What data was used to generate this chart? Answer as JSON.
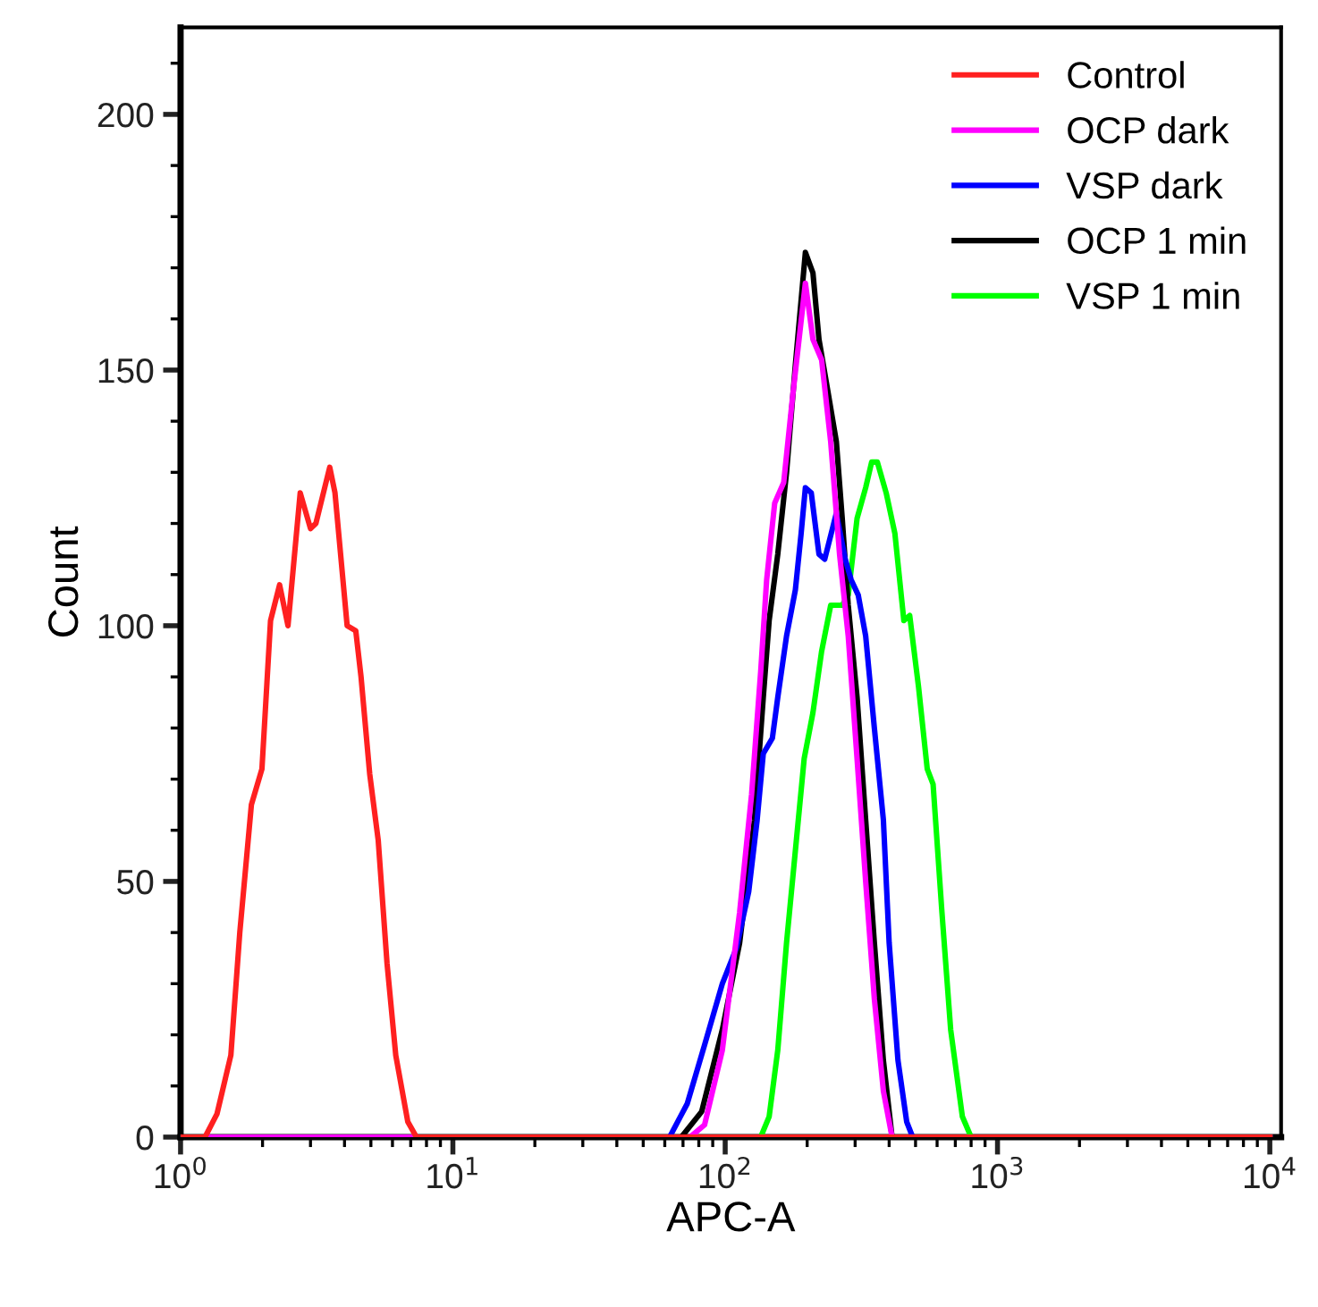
{
  "chart_data": {
    "type": "line",
    "xlabel": "APC-A",
    "ylabel": "Count",
    "log": "x",
    "xlim": [
      1,
      11000
    ],
    "ylim": [
      0,
      217
    ],
    "xticks": [
      {
        "value": 1,
        "label": "10$^{0}$"
      },
      {
        "value": 10,
        "label": "10$^{1}$"
      },
      {
        "value": 100,
        "label": "10$^{2}$"
      },
      {
        "value": 1000,
        "label": "10$^{3}$"
      },
      {
        "value": 10000,
        "label": "10$^{4}$"
      }
    ],
    "yticks": [
      0,
      50,
      100,
      150,
      200
    ],
    "grid": false,
    "legend": "top right",
    "marker": "none",
    "line_style": "solid",
    "series": [
      {
        "name": "Control",
        "color": "#ff2020",
        "x": [
          1,
          1.23,
          1.36,
          1.53,
          1.65,
          1.82,
          1.99,
          2.14,
          2.31,
          2.48,
          2.75,
          3.0,
          3.14,
          3.53,
          3.69,
          4.09,
          4.4,
          4.6,
          4.95,
          5.32,
          5.73,
          6.17,
          6.83,
          7.35,
          10000
        ],
        "values": [
          0,
          0,
          4.5,
          16,
          40,
          65,
          72,
          101,
          108,
          100,
          126,
          119,
          120,
          131,
          126,
          100,
          99,
          90,
          71,
          58,
          34,
          16,
          3,
          0,
          0
        ]
      },
      {
        "name": "OCP dark",
        "color": "#ff00ff",
        "x": [
          1,
          74.3,
          84,
          97.6,
          113,
          125,
          135,
          142,
          152,
          164,
          177,
          197,
          210,
          226,
          244,
          263,
          283,
          305,
          328,
          353,
          381,
          410,
          10000
        ],
        "values": [
          0,
          0,
          2.4,
          17,
          44,
          67,
          91,
          109,
          124,
          128,
          145,
          167,
          156,
          152,
          136,
          114,
          98,
          74,
          50,
          27,
          9,
          0,
          0
        ]
      },
      {
        "name": "VSP dark",
        "color": "#0000ff",
        "x": [
          1,
          62.5,
          72.5,
          84,
          97.6,
          110,
          122,
          131,
          138,
          149,
          156,
          168,
          181,
          190,
          197,
          207,
          221,
          232,
          256,
          276,
          290,
          308,
          328,
          353,
          381,
          400,
          431,
          464,
          488,
          10000
        ],
        "values": [
          0,
          0,
          6.5,
          18,
          30,
          37,
          48,
          62,
          75,
          78,
          86,
          98,
          107,
          118,
          127,
          126,
          114,
          113,
          122,
          113,
          109,
          106,
          98,
          80,
          62,
          38,
          15,
          3,
          0,
          0
        ]
      },
      {
        "name": "OCP 1 min",
        "color": "#000000",
        "x": [
          1,
          69,
          82,
          97.6,
          113,
          128,
          138,
          145,
          156,
          168,
          181,
          197,
          210,
          221,
          238,
          256,
          269,
          283,
          305,
          328,
          353,
          381,
          410,
          10000
        ],
        "values": [
          0,
          0,
          5,
          21,
          38,
          62,
          86,
          101,
          114,
          130,
          151,
          173,
          169,
          156,
          146,
          136,
          121,
          104,
          86,
          62,
          38,
          15,
          0,
          0
        ]
      },
      {
        "name": "VSP 1 min",
        "color": "#00ff00",
        "x": [
          1,
          135,
          145,
          156,
          168,
          181,
          195,
          210,
          226,
          244,
          269,
          283,
          305,
          328,
          345,
          362,
          390,
          420,
          453,
          476,
          513,
          552,
          580,
          625,
          673,
          743,
          800,
          10000
        ],
        "values": [
          0,
          0,
          4,
          17,
          38,
          56,
          74,
          83,
          95,
          104,
          104,
          106,
          121,
          127,
          132,
          132,
          126,
          118,
          101,
          102,
          88,
          72,
          69,
          44,
          21,
          4,
          0,
          0
        ]
      }
    ]
  }
}
